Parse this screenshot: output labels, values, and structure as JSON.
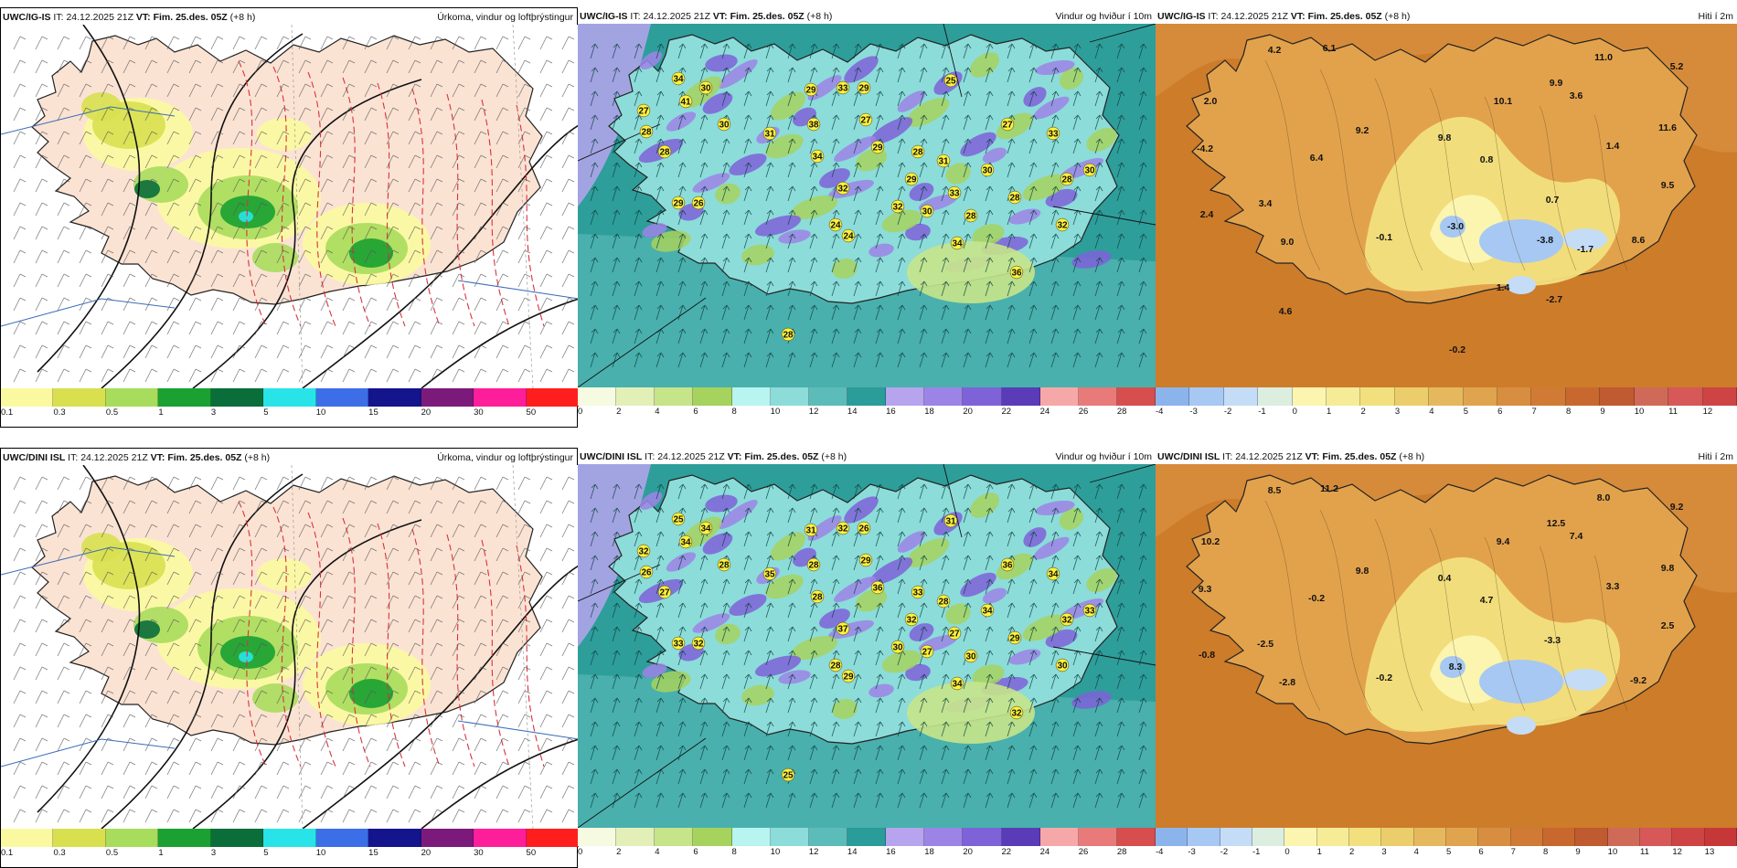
{
  "rows": [
    {
      "precip": {
        "model": "UWC/IG-IS",
        "it_label": "IT:",
        "it": "24.12.2025 21Z",
        "vt_label": "VT:",
        "vt": "Fim. 25.des. 05Z",
        "lead": "(+8 h)",
        "right": "Úrkoma, vindur og loftþrýstingur"
      },
      "wind": {
        "model": "UWC/IG-IS",
        "it_label": "IT:",
        "it": "24.12.2025 21Z",
        "vt_label": "VT:",
        "vt": "Fim. 25.des. 05Z",
        "lead": "(+8 h)",
        "right": "Vindur og hviður í 10m",
        "labels": [
          "34",
          "41",
          "30",
          "28",
          "27",
          "28",
          "30",
          "29",
          "26",
          "31",
          "38",
          "34",
          "29",
          "33",
          "32",
          "29",
          "27",
          "29",
          "25",
          "28",
          "29",
          "32",
          "30",
          "33",
          "31",
          "28",
          "30",
          "27",
          "28",
          "33",
          "32",
          "28",
          "30",
          "34",
          "36",
          "24",
          "24",
          "28"
        ]
      },
      "temp": {
        "model": "UWC/IG-IS",
        "it_label": "IT:",
        "it": "24.12.2025 21Z",
        "vt_label": "VT:",
        "vt": "Fim. 25.des. 05Z",
        "lead": "(+8 h)",
        "right": "Hiti í 2m",
        "labels": [
          "4.2",
          "6.1",
          "11.0",
          "5.2",
          "2.0",
          "9.9",
          "3.6",
          "10.1",
          "11.6",
          "-4.2",
          "9.2",
          "9.8",
          "0.8",
          "1.4",
          "6.4",
          "9.5",
          "3.4",
          "0.7",
          "2.4",
          "-3.0",
          "8.6",
          "9.0",
          "-0.1",
          "-3.8",
          "-1.7",
          "1.4",
          "-2.7",
          "4.6",
          "-0.2"
        ]
      }
    },
    {
      "precip": {
        "model": "UWC/DINI ISL",
        "it_label": "IT:",
        "it": "24.12.2025 21Z",
        "vt_label": "VT:",
        "vt": "Fim. 25.des. 05Z",
        "lead": "(+8 h)",
        "right": "Úrkoma, vindur og loftþrýstingur"
      },
      "wind": {
        "model": "UWC/DINI ISL",
        "it_label": "IT:",
        "it": "24.12.2025 21Z",
        "vt_label": "VT:",
        "vt": "Fim. 25.des. 05Z",
        "lead": "(+8 h)",
        "right": "Vindur og hviður í 10m",
        "labels": [
          "25",
          "34",
          "34",
          "26",
          "32",
          "27",
          "28",
          "33",
          "32",
          "35",
          "28",
          "28",
          "31",
          "32",
          "37",
          "36",
          "29",
          "26",
          "31",
          "33",
          "32",
          "30",
          "27",
          "27",
          "28",
          "30",
          "34",
          "36",
          "29",
          "34",
          "30",
          "32",
          "33",
          "34",
          "32",
          "28",
          "29",
          "25"
        ]
      },
      "temp": {
        "model": "UWC/DINI ISL",
        "it_label": "IT:",
        "it": "24.12.2025 21Z",
        "vt_label": "VT:",
        "vt": "Fim. 25.des. 05Z",
        "lead": "(+8 h)",
        "right": "Hiti í 2m",
        "labels": [
          "8.5",
          "11.2",
          "8.0",
          "9.2",
          "10.2",
          "12.5",
          "7.4",
          "9.4",
          "9.8",
          "9.3",
          "9.8",
          "0.4",
          "4.7",
          "3.3",
          "-0.2",
          "2.5",
          "-2.5",
          "-3.3",
          "-0.8",
          "8.3",
          "-9.2",
          "-2.8",
          "-0.2"
        ]
      }
    }
  ],
  "precip_scale": {
    "ticks": [
      "0.1",
      "0.3",
      "0.5",
      "1",
      "3",
      "5",
      "10",
      "15",
      "20",
      "30",
      "50"
    ],
    "colors": [
      "#fbf9a0",
      "#d8e050",
      "#a8dc5c",
      "#1aa132",
      "#0a6e3a",
      "#28e4e8",
      "#3c6ee8",
      "#14148c",
      "#7c1a7c",
      "#ff1e9a",
      "#ff1e1e"
    ]
  },
  "wind_scale": {
    "ticks": [
      "0",
      "2",
      "4",
      "6",
      "8",
      "10",
      "12",
      "14",
      "16",
      "18",
      "20",
      "22",
      "24",
      "26",
      "28"
    ],
    "colors": [
      "#f6fae0",
      "#e2f0b8",
      "#c6e48a",
      "#a6d25e",
      "#b8f4f0",
      "#8cdcda",
      "#5cbcba",
      "#2a9c9a",
      "#b6a4ee",
      "#9c84e6",
      "#7e62d8",
      "#5a3cb8",
      "#f6a8a8",
      "#e87a7a",
      "#d64e4e"
    ]
  },
  "temp_scale": [
    {
      "ticks": [
        "-4",
        "-3",
        "-2",
        "-1",
        "0",
        "1",
        "2",
        "3",
        "4",
        "5",
        "6",
        "7",
        "8",
        "9",
        "10",
        "11",
        "12"
      ]
    },
    {
      "ticks": [
        "-4",
        "-3",
        "-2",
        "-1",
        "0",
        "1",
        "2",
        "3",
        "4",
        "5",
        "6",
        "7",
        "8",
        "9",
        "10",
        "11",
        "12",
        "13"
      ]
    }
  ],
  "temp_colors": [
    "#8cb4ec",
    "#a6c8f2",
    "#c4dcf6",
    "#dceee0",
    "#fbf5b0",
    "#f6ec98",
    "#f2e07e",
    "#eccd6c",
    "#e6b85e",
    "#e0a44e",
    "#d88e40",
    "#d07a36",
    "#c8682e",
    "#c05a30",
    "#d06a58",
    "#d65858",
    "#ce4444",
    "#c63838"
  ],
  "map": {
    "land_precip": "#fbe3d4",
    "sea_wind": "#2e9e9a",
    "land_temp": "#e2a24c",
    "sea_temp": "#cd7c2a"
  }
}
